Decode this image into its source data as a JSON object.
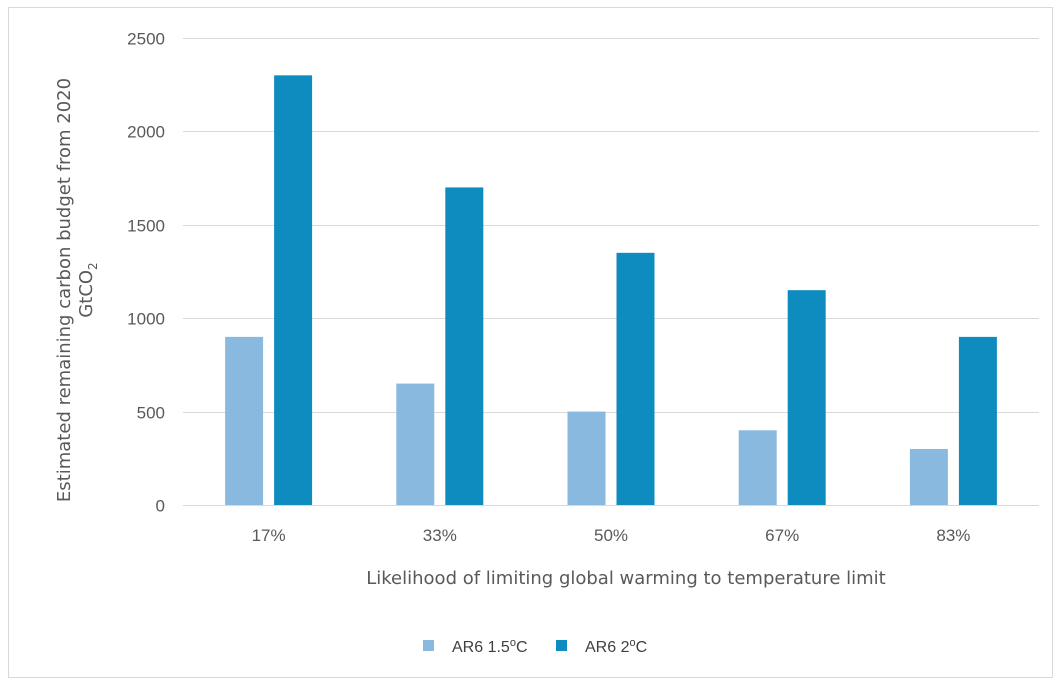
{
  "chart_data": {
    "type": "bar",
    "categories": [
      "17%",
      "33%",
      "50%",
      "67%",
      "83%"
    ],
    "series": [
      {
        "name": "AR6 1.5",
        "name_sup": "o",
        "name_suffix": "C",
        "color": "#8AB9DF",
        "values": [
          900,
          650,
          500,
          400,
          300
        ]
      },
      {
        "name": "AR6 2",
        "name_sup": "o",
        "name_suffix": "C",
        "color": "#0E8BBF",
        "values": [
          2300,
          1700,
          1350,
          1150,
          900
        ]
      }
    ],
    "xlabel": "Likelihood of limiting global warming to temperature limit",
    "ylabel_line1": "Estimated remaining carbon budget from 2020",
    "ylabel_line2_prefix": "GtCO",
    "ylabel_line2_sub": "2",
    "ylim": [
      0,
      2500
    ],
    "yticks": [
      0,
      500,
      1000,
      1500,
      2000,
      2500
    ],
    "grid": true,
    "legend_position": "bottom"
  },
  "colors": {
    "gridline": "#D9D9D9",
    "axis_text": "#595959",
    "frame": "#D9D9D9"
  }
}
